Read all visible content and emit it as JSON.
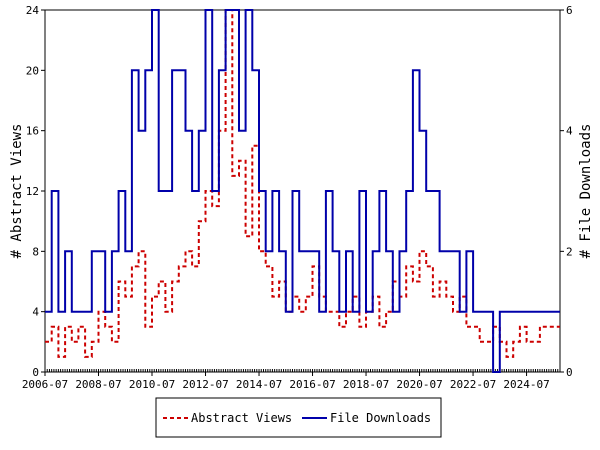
{
  "chart_data": {
    "type": "line",
    "ylabel_left": "# Abstract Views",
    "ylabel_right": "# File Downloads",
    "xlim": [
      "2006-07",
      "2025-10"
    ],
    "ylim_left": [
      0,
      24
    ],
    "ylim_right": [
      0,
      6
    ],
    "x_ticks": [
      "2006-07",
      "2008-07",
      "2010-07",
      "2012-07",
      "2014-07",
      "2016-07",
      "2018-07",
      "2020-07",
      "2022-07",
      "2024-07"
    ],
    "y_ticks_left": [
      0,
      4,
      8,
      12,
      16,
      20,
      24
    ],
    "y_ticks_right": [
      0,
      2,
      4,
      6
    ],
    "legend_position": "bottom",
    "grid": false,
    "series": [
      {
        "name": "Abstract Views",
        "axis": "left",
        "color": "#cc0000",
        "style": "dashed",
        "values": [
          [
            "2006-07",
            2
          ],
          [
            "2006-10",
            3
          ],
          [
            "2007-01",
            1
          ],
          [
            "2007-04",
            3
          ],
          [
            "2007-07",
            2
          ],
          [
            "2007-10",
            3
          ],
          [
            "2008-01",
            1
          ],
          [
            "2008-04",
            2
          ],
          [
            "2008-07",
            4
          ],
          [
            "2008-10",
            3
          ],
          [
            "2009-01",
            2
          ],
          [
            "2009-04",
            6
          ],
          [
            "2009-07",
            5
          ],
          [
            "2009-10",
            7
          ],
          [
            "2010-01",
            8
          ],
          [
            "2010-04",
            3
          ],
          [
            "2010-07",
            5
          ],
          [
            "2010-10",
            6
          ],
          [
            "2011-01",
            4
          ],
          [
            "2011-04",
            6
          ],
          [
            "2011-07",
            7
          ],
          [
            "2011-10",
            8
          ],
          [
            "2012-01",
            7
          ],
          [
            "2012-04",
            10
          ],
          [
            "2012-07",
            12
          ],
          [
            "2012-10",
            11
          ],
          [
            "2013-01",
            16
          ],
          [
            "2013-04",
            24
          ],
          [
            "2013-07",
            13
          ],
          [
            "2013-10",
            14
          ],
          [
            "2014-01",
            9
          ],
          [
            "2014-04",
            15
          ],
          [
            "2014-07",
            8
          ],
          [
            "2014-10",
            7
          ],
          [
            "2015-01",
            5
          ],
          [
            "2015-04",
            6
          ],
          [
            "2015-07",
            4
          ],
          [
            "2015-10",
            5
          ],
          [
            "2016-01",
            4
          ],
          [
            "2016-04",
            5
          ],
          [
            "2016-07",
            7
          ],
          [
            "2016-10",
            5
          ],
          [
            "2017-01",
            4
          ],
          [
            "2017-04",
            4
          ],
          [
            "2017-07",
            3
          ],
          [
            "2017-10",
            4
          ],
          [
            "2018-01",
            5
          ],
          [
            "2018-04",
            3
          ],
          [
            "2018-07",
            4
          ],
          [
            "2018-10",
            5
          ],
          [
            "2019-01",
            3
          ],
          [
            "2019-04",
            4
          ],
          [
            "2019-07",
            6
          ],
          [
            "2019-10",
            5
          ],
          [
            "2020-01",
            7
          ],
          [
            "2020-04",
            6
          ],
          [
            "2020-07",
            8
          ],
          [
            "2020-10",
            7
          ],
          [
            "2021-01",
            5
          ],
          [
            "2021-04",
            6
          ],
          [
            "2021-07",
            5
          ],
          [
            "2021-10",
            4
          ],
          [
            "2022-01",
            5
          ],
          [
            "2022-04",
            3
          ],
          [
            "2022-07",
            3
          ],
          [
            "2022-10",
            2
          ],
          [
            "2023-01",
            2
          ],
          [
            "2023-04",
            3
          ],
          [
            "2023-07",
            2
          ],
          [
            "2023-10",
            1
          ],
          [
            "2024-01",
            2
          ],
          [
            "2024-04",
            3
          ],
          [
            "2024-07",
            2
          ],
          [
            "2024-10",
            2
          ],
          [
            "2025-01",
            3
          ]
        ]
      },
      {
        "name": "File Downloads",
        "axis": "right",
        "color": "#0000aa",
        "style": "solid",
        "values": [
          [
            "2006-07",
            1
          ],
          [
            "2006-10",
            3
          ],
          [
            "2007-01",
            1
          ],
          [
            "2007-04",
            2
          ],
          [
            "2007-07",
            1
          ],
          [
            "2007-10",
            1
          ],
          [
            "2008-01",
            1
          ],
          [
            "2008-04",
            2
          ],
          [
            "2008-07",
            2
          ],
          [
            "2008-10",
            1
          ],
          [
            "2009-01",
            2
          ],
          [
            "2009-04",
            3
          ],
          [
            "2009-07",
            2
          ],
          [
            "2009-10",
            5
          ],
          [
            "2010-01",
            4
          ],
          [
            "2010-04",
            5
          ],
          [
            "2010-07",
            6
          ],
          [
            "2010-10",
            3
          ],
          [
            "2011-01",
            3
          ],
          [
            "2011-04",
            5
          ],
          [
            "2011-07",
            5
          ],
          [
            "2011-10",
            4
          ],
          [
            "2012-01",
            3
          ],
          [
            "2012-04",
            4
          ],
          [
            "2012-07",
            6
          ],
          [
            "2012-10",
            3
          ],
          [
            "2013-01",
            5
          ],
          [
            "2013-04",
            6
          ],
          [
            "2013-07",
            6
          ],
          [
            "2013-10",
            4
          ],
          [
            "2014-01",
            6
          ],
          [
            "2014-04",
            5
          ],
          [
            "2014-07",
            3
          ],
          [
            "2014-10",
            2
          ],
          [
            "2015-01",
            3
          ],
          [
            "2015-04",
            2
          ],
          [
            "2015-07",
            1
          ],
          [
            "2015-10",
            3
          ],
          [
            "2016-01",
            2
          ],
          [
            "2016-04",
            2
          ],
          [
            "2016-07",
            2
          ],
          [
            "2016-10",
            1
          ],
          [
            "2017-01",
            3
          ],
          [
            "2017-04",
            2
          ],
          [
            "2017-07",
            1
          ],
          [
            "2017-10",
            2
          ],
          [
            "2018-01",
            1
          ],
          [
            "2018-04",
            3
          ],
          [
            "2018-07",
            1
          ],
          [
            "2018-10",
            2
          ],
          [
            "2019-01",
            3
          ],
          [
            "2019-04",
            2
          ],
          [
            "2019-07",
            1
          ],
          [
            "2019-10",
            2
          ],
          [
            "2020-01",
            3
          ],
          [
            "2020-04",
            5
          ],
          [
            "2020-07",
            4
          ],
          [
            "2020-10",
            3
          ],
          [
            "2021-01",
            3
          ],
          [
            "2021-04",
            2
          ],
          [
            "2021-07",
            2
          ],
          [
            "2021-10",
            2
          ],
          [
            "2022-01",
            1
          ],
          [
            "2022-04",
            2
          ],
          [
            "2022-07",
            1
          ],
          [
            "2022-10",
            1
          ],
          [
            "2023-01",
            1
          ],
          [
            "2023-04",
            0
          ],
          [
            "2023-07",
            1
          ],
          [
            "2023-10",
            1
          ],
          [
            "2024-01",
            1
          ],
          [
            "2024-04",
            1
          ],
          [
            "2024-07",
            1
          ],
          [
            "2024-10",
            1
          ],
          [
            "2025-01",
            1
          ]
        ]
      }
    ]
  }
}
